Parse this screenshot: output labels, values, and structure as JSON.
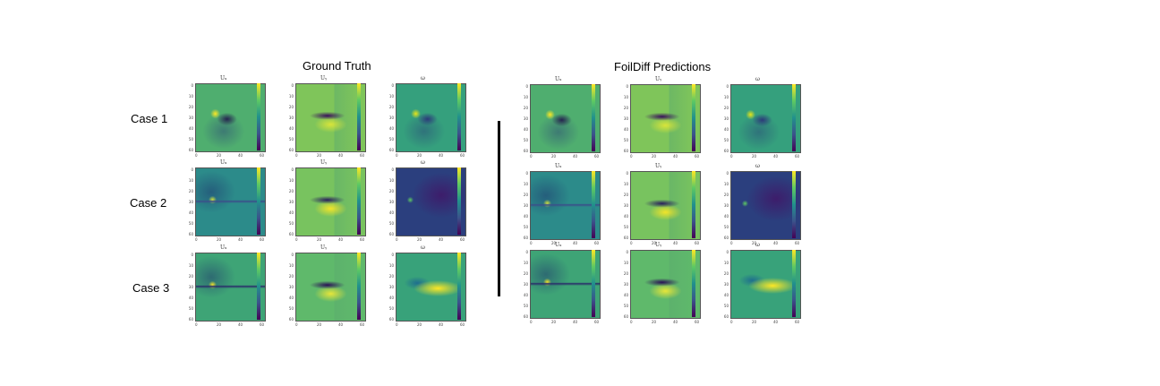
{
  "titles": {
    "left": "Ground Truth",
    "right": "FoilDiff Predictions"
  },
  "cases": [
    "Case 1",
    "Case 2",
    "Case 3"
  ],
  "field_symbols": [
    "Uₓ",
    "Uᵧ",
    "ω"
  ],
  "colormap": [
    "#440154",
    "#3b528b",
    "#21918c",
    "#5ec962",
    "#fde725"
  ],
  "panels": [
    {
      "id": "gt-c1-0",
      "case": "Case 1",
      "set": "Ground Truth",
      "bg": "#4fae6f",
      "wake": "#25234f",
      "tip": "#fde725",
      "style": "dipole"
    },
    {
      "id": "gt-c1-1",
      "case": "Case 1",
      "set": "Ground Truth",
      "bg": "#7fc55a",
      "wake": "#3a0f5a",
      "tip": "#d8e43a",
      "style": "body"
    },
    {
      "id": "gt-c1-2",
      "case": "Case 1",
      "set": "Ground Truth",
      "bg": "#35a07d",
      "wake": "#2c3a7a",
      "tip": "#e7e419",
      "style": "dipole"
    },
    {
      "id": "gt-c2-0",
      "case": "Case 2",
      "set": "Ground Truth",
      "bg": "#2c8b8a",
      "wake": "#3b4f8a",
      "tip": "#d8e43a",
      "style": "thin"
    },
    {
      "id": "gt-c2-1",
      "case": "Case 2",
      "set": "Ground Truth",
      "bg": "#78c35f",
      "wake": "#2a1e5c",
      "tip": "#f1e42a",
      "style": "body"
    },
    {
      "id": "gt-c2-2",
      "case": "Case 2",
      "set": "Ground Truth",
      "bg": "#2b3f7e",
      "wake": "#3d1d6b",
      "tip": "#5ec962",
      "style": "dark"
    },
    {
      "id": "gt-c3-0",
      "case": "Case 3",
      "set": "Ground Truth",
      "bg": "#3ea476",
      "wake": "#2a2e6a",
      "tip": "#fde725",
      "style": "thin"
    },
    {
      "id": "gt-c3-1",
      "case": "Case 3",
      "set": "Ground Truth",
      "bg": "#5fb96b",
      "wake": "#2a0f55",
      "tip": "#e6e53a",
      "style": "body"
    },
    {
      "id": "gt-c3-2",
      "case": "Case 3",
      "set": "Ground Truth",
      "bg": "#38a27a",
      "wake": "#1f6f8e",
      "tip": "#fde725",
      "style": "wake"
    },
    {
      "id": "fd-c1-0",
      "case": "Case 1",
      "set": "FoilDiff Predictions",
      "bg": "#4fae6f",
      "wake": "#25234f",
      "tip": "#fde725",
      "style": "dipole"
    },
    {
      "id": "fd-c1-1",
      "case": "Case 1",
      "set": "FoilDiff Predictions",
      "bg": "#7fc55a",
      "wake": "#3a0f5a",
      "tip": "#d8e43a",
      "style": "body"
    },
    {
      "id": "fd-c1-2",
      "case": "Case 1",
      "set": "FoilDiff Predictions",
      "bg": "#35a07d",
      "wake": "#2c3a7a",
      "tip": "#e7e419",
      "style": "dipole"
    },
    {
      "id": "fd-c2-0",
      "case": "Case 2",
      "set": "FoilDiff Predictions",
      "bg": "#2c8b8a",
      "wake": "#3b4f8a",
      "tip": "#d8e43a",
      "style": "thin"
    },
    {
      "id": "fd-c2-1",
      "case": "Case 2",
      "set": "FoilDiff Predictions",
      "bg": "#78c35f",
      "wake": "#2a1e5c",
      "tip": "#f1e42a",
      "style": "body"
    },
    {
      "id": "fd-c2-2",
      "case": "Case 2",
      "set": "FoilDiff Predictions",
      "bg": "#2b3f7e",
      "wake": "#3d1d6b",
      "tip": "#5ec962",
      "style": "dark"
    },
    {
      "id": "fd-c3-0",
      "case": "Case 3",
      "set": "FoilDiff Predictions",
      "bg": "#3ea476",
      "wake": "#2a2e6a",
      "tip": "#fde725",
      "style": "thin"
    },
    {
      "id": "fd-c3-1",
      "case": "Case 3",
      "set": "FoilDiff Predictions",
      "bg": "#5fb96b",
      "wake": "#2a0f55",
      "tip": "#e6e53a",
      "style": "body"
    },
    {
      "id": "fd-c3-2",
      "case": "Case 3",
      "set": "FoilDiff Predictions",
      "bg": "#38a27a",
      "wake": "#1f6f8e",
      "tip": "#fde725",
      "style": "wake"
    }
  ],
  "yticks": [
    "0",
    "10",
    "20",
    "30",
    "40",
    "50",
    "60"
  ],
  "xticks": [
    "0",
    "20",
    "40",
    "60"
  ]
}
